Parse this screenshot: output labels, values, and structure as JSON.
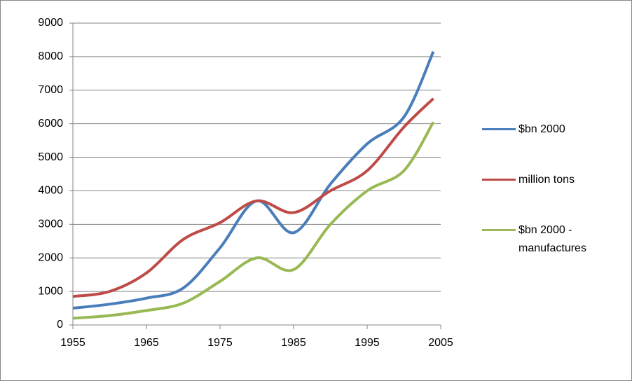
{
  "chart_data": {
    "type": "line",
    "x": [
      1955,
      1960,
      1965,
      1970,
      1975,
      1980,
      1985,
      1990,
      1995,
      2000,
      2004
    ],
    "series": [
      {
        "name": "$bn 2000",
        "color": "#4a7ebb",
        "values": [
          500,
          620,
          800,
          1100,
          2300,
          3700,
          2750,
          4200,
          5400,
          6200,
          8150
        ]
      },
      {
        "name": "million tons",
        "color": "#be4b48",
        "values": [
          850,
          1000,
          1550,
          2550,
          3050,
          3700,
          3350,
          4000,
          4600,
          5900,
          6750
        ]
      },
      {
        "name": "$bn 2000 - manufactures",
        "color": "#98b954",
        "values": [
          200,
          280,
          430,
          650,
          1300,
          2000,
          1650,
          3000,
          4000,
          4600,
          6050
        ]
      }
    ],
    "xlim": [
      1955,
      2005
    ],
    "xticks": [
      1955,
      1965,
      1975,
      1985,
      1995,
      2005
    ],
    "ylim": [
      0,
      9000
    ],
    "yticks": [
      0,
      1000,
      2000,
      3000,
      4000,
      5000,
      6000,
      7000,
      8000,
      9000
    ],
    "grid": true
  }
}
